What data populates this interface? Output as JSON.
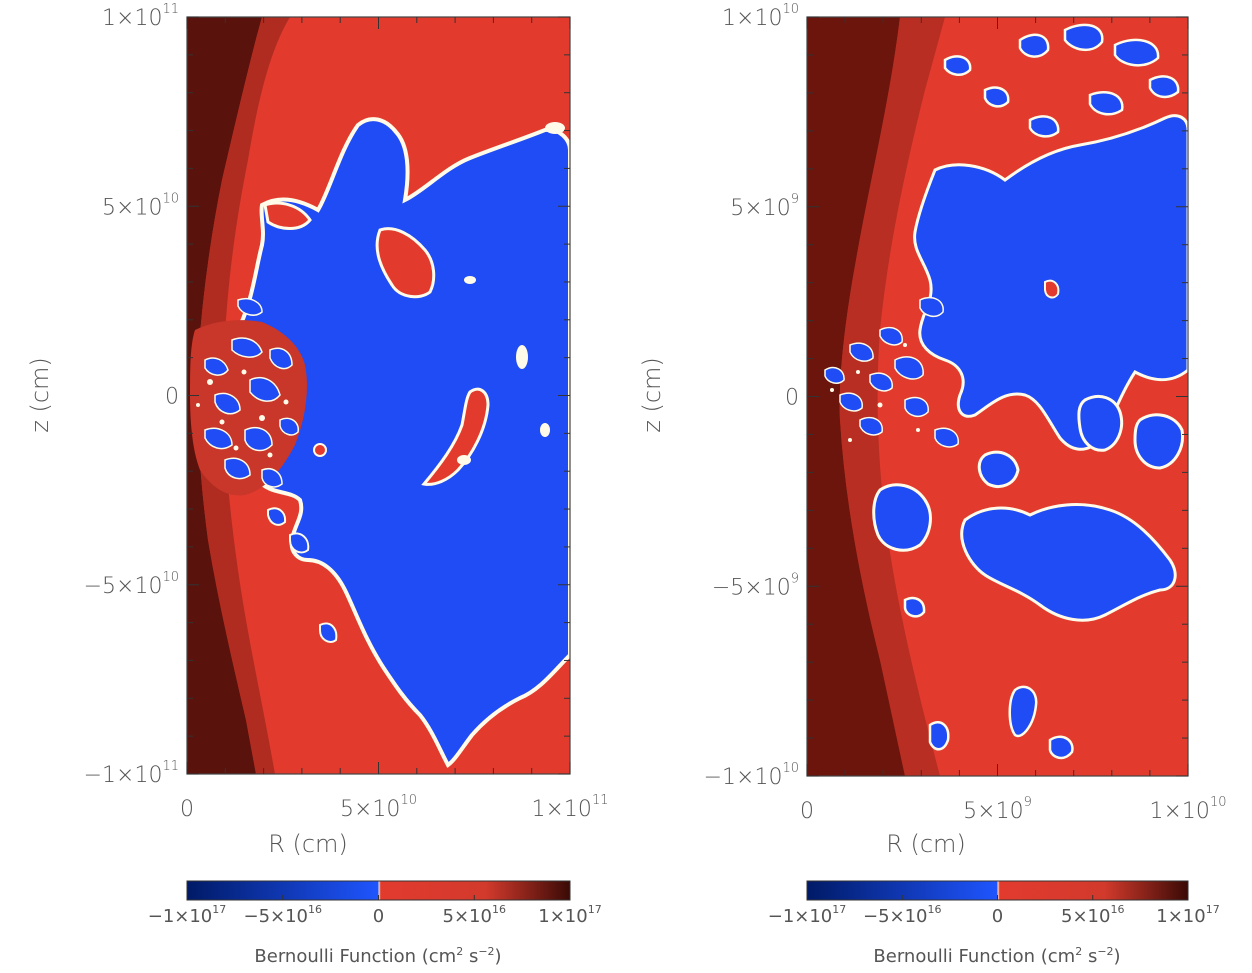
{
  "chart_data": [
    {
      "type": "heatmap",
      "xlabel": "R (cm)",
      "ylabel": "z (cm)",
      "xlim": [
        0,
        100000000000.0
      ],
      "ylim": [
        -100000000000.0,
        100000000000.0
      ],
      "x_ticks": [
        {
          "value": 0,
          "label": "0"
        },
        {
          "value": 50000000000.0,
          "label": "5×10",
          "exp": "10"
        },
        {
          "value": 100000000000.0,
          "label": "1×10",
          "exp": "11"
        }
      ],
      "y_ticks": [
        {
          "value": 100000000000.0,
          "label": "1×10",
          "exp": "11"
        },
        {
          "value": 50000000000.0,
          "label": "5×10",
          "exp": "10"
        },
        {
          "value": 0,
          "label": "0"
        },
        {
          "value": -50000000000.0,
          "label": "−5×10",
          "exp": "10"
        },
        {
          "value": -100000000000.0,
          "label": "−1×10",
          "exp": "11"
        }
      ],
      "colorbar": {
        "label": "Bernoulli Function (cm",
        "label_exp1": "2",
        "label_mid": " s",
        "label_exp2": "−2",
        "label_end": ")",
        "range": [
          -1e+17,
          1e+17
        ],
        "colors": {
          "neg_dark": "#001a66",
          "neg": "#1f4cf5",
          "zero": "#fffbe8",
          "pos": "#e23b2e",
          "pos_dark": "#5a0f0a"
        },
        "ticks": [
          {
            "value": -1e+17,
            "label": "−1×10",
            "exp": "17"
          },
          {
            "value": -5e+16,
            "label": "−5×10",
            "exp": "16"
          },
          {
            "value": 0,
            "label": "0"
          },
          {
            "value": 5e+16,
            "label": "5×10",
            "exp": "16"
          },
          {
            "value": 1e+17,
            "label": "1×10",
            "exp": "17"
          }
        ]
      }
    },
    {
      "type": "heatmap",
      "xlabel": "R (cm)",
      "ylabel": "z (cm)",
      "xlim": [
        0,
        10000000000.0
      ],
      "ylim": [
        -10000000000.0,
        10000000000.0
      ],
      "x_ticks": [
        {
          "value": 0,
          "label": "0"
        },
        {
          "value": 5000000000.0,
          "label": "5×10",
          "exp": "9"
        },
        {
          "value": 10000000000.0,
          "label": "1×10",
          "exp": "10"
        }
      ],
      "y_ticks": [
        {
          "value": 10000000000.0,
          "label": "1×10",
          "exp": "10"
        },
        {
          "value": 5000000000.0,
          "label": "5×10",
          "exp": "9"
        },
        {
          "value": 0,
          "label": "0"
        },
        {
          "value": -5000000000.0,
          "label": "−5×10",
          "exp": "9"
        },
        {
          "value": -10000000000.0,
          "label": "−1×10",
          "exp": "10"
        }
      ],
      "colorbar": {
        "label": "Bernoulli Function (cm",
        "label_exp1": "2",
        "label_mid": " s",
        "label_exp2": "−2",
        "label_end": ")",
        "range": [
          -1e+17,
          1e+17
        ],
        "colors": {
          "neg_dark": "#001a66",
          "neg": "#1f4cf5",
          "zero": "#fffbe8",
          "pos": "#e23b2e",
          "pos_dark": "#5a0f0a"
        },
        "ticks": [
          {
            "value": -1e+17,
            "label": "−1×10",
            "exp": "17"
          },
          {
            "value": -5e+16,
            "label": "−5×10",
            "exp": "16"
          },
          {
            "value": 0,
            "label": "0"
          },
          {
            "value": 5e+16,
            "label": "5×10",
            "exp": "16"
          },
          {
            "value": 1e+17,
            "label": "1×10",
            "exp": "17"
          }
        ]
      }
    }
  ]
}
